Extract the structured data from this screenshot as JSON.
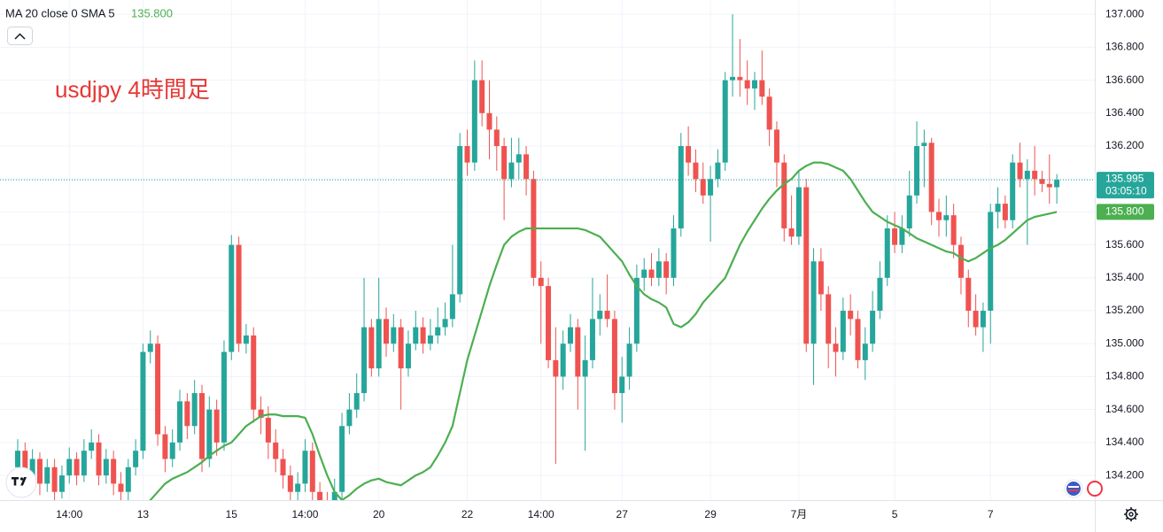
{
  "chart_data": {
    "type": "candlestick",
    "indicator_label": "MA 20 close 0 SMA 5",
    "ma_last": {
      "value": 135.8,
      "label": "135.800"
    },
    "annotation": "usdjpy 4時間足",
    "last_price": 135.995,
    "countdown": "03:05:10",
    "up_color": "#26a69a",
    "down_color": "#ef5350",
    "ma_color": "#4caf50",
    "grid": true,
    "ylim": [
      134.05,
      137.087
    ],
    "yticks": [
      {
        "value": 134.2,
        "label": "134.200"
      },
      {
        "value": 134.4,
        "label": "134.400"
      },
      {
        "value": 134.6,
        "label": "134.600"
      },
      {
        "value": 134.8,
        "label": "134.800"
      },
      {
        "value": 135,
        "label": "135.000"
      },
      {
        "value": 135.2,
        "label": "135.200"
      },
      {
        "value": 135.4,
        "label": "135.400"
      },
      {
        "value": 135.6,
        "label": "135.600"
      },
      {
        "value": 135.8,
        "label": "135.800"
      },
      {
        "value": 136,
        "label": "136.000"
      },
      {
        "value": 136.2,
        "label": "136.200"
      },
      {
        "value": 136.4,
        "label": "136.400"
      },
      {
        "value": 136.6,
        "label": "136.600"
      },
      {
        "value": 136.8,
        "label": "136.800"
      },
      {
        "value": 137,
        "label": "137.000"
      }
    ],
    "categories": [
      null,
      null,
      null,
      null,
      null,
      null,
      null,
      "14:00",
      null,
      null,
      null,
      null,
      null,
      null,
      null,
      null,
      null,
      "13",
      null,
      null,
      null,
      null,
      null,
      null,
      null,
      null,
      null,
      null,
      null,
      "15",
      null,
      null,
      null,
      null,
      null,
      null,
      null,
      null,
      null,
      "14:00",
      null,
      null,
      null,
      null,
      null,
      null,
      null,
      null,
      null,
      "20",
      null,
      null,
      null,
      null,
      null,
      null,
      null,
      null,
      null,
      null,
      null,
      "22",
      null,
      null,
      null,
      null,
      null,
      null,
      null,
      null,
      null,
      "14:00",
      null,
      null,
      null,
      null,
      null,
      null,
      null,
      null,
      null,
      null,
      "27",
      null,
      null,
      null,
      null,
      null,
      null,
      null,
      null,
      null,
      null,
      null,
      "29",
      null,
      null,
      null,
      null,
      null,
      null,
      null,
      null,
      null,
      null,
      null,
      "7月",
      null,
      null,
      null,
      null,
      null,
      null,
      null,
      null,
      null,
      null,
      null,
      null,
      "5",
      null,
      null,
      null,
      null,
      null,
      null,
      null,
      null,
      null,
      null,
      null,
      null,
      "7",
      null,
      null,
      null,
      null,
      null,
      null,
      null,
      null,
      null
    ],
    "candles": [
      [
        134.25,
        134.42,
        134.18,
        134.35
      ],
      [
        134.35,
        134.4,
        134.12,
        134.2
      ],
      [
        134.2,
        134.36,
        134.15,
        134.3
      ],
      [
        134.3,
        134.34,
        134.08,
        134.15
      ],
      [
        134.15,
        134.3,
        134.1,
        134.25
      ],
      [
        134.25,
        134.3,
        134.05,
        134.1
      ],
      [
        134.1,
        134.26,
        134.06,
        134.2
      ],
      [
        134.2,
        134.37,
        134.15,
        134.3
      ],
      [
        134.3,
        134.34,
        134.14,
        134.2
      ],
      [
        134.2,
        134.42,
        134.16,
        134.35
      ],
      [
        134.35,
        134.48,
        134.3,
        134.4
      ],
      [
        134.4,
        134.45,
        134.14,
        134.2
      ],
      [
        134.2,
        134.36,
        134.15,
        134.3
      ],
      [
        134.3,
        134.35,
        134.08,
        134.15
      ],
      [
        134.15,
        134.22,
        134.04,
        134.1
      ],
      [
        134.1,
        134.3,
        134.05,
        134.25
      ],
      [
        134.25,
        134.42,
        134.2,
        134.35
      ],
      [
        134.35,
        135.0,
        134.3,
        134.95
      ],
      [
        134.95,
        135.08,
        134.88,
        135.0
      ],
      [
        135.0,
        135.05,
        134.38,
        134.45
      ],
      [
        134.45,
        134.5,
        134.22,
        134.3
      ],
      [
        134.3,
        134.48,
        134.25,
        134.4
      ],
      [
        134.4,
        134.72,
        134.35,
        134.65
      ],
      [
        134.65,
        134.7,
        134.42,
        134.5
      ],
      [
        134.5,
        134.78,
        134.45,
        134.7
      ],
      [
        134.7,
        134.75,
        134.22,
        134.3
      ],
      [
        134.3,
        134.68,
        134.25,
        134.6
      ],
      [
        134.6,
        134.66,
        134.32,
        134.4
      ],
      [
        134.4,
        135.02,
        134.35,
        134.95
      ],
      [
        134.95,
        135.66,
        134.9,
        135.6
      ],
      [
        135.6,
        135.65,
        134.95,
        135.0
      ],
      [
        135.0,
        135.12,
        134.94,
        135.05
      ],
      [
        135.05,
        135.1,
        134.52,
        134.6
      ],
      [
        134.6,
        134.68,
        134.45,
        134.55
      ],
      [
        134.55,
        134.62,
        134.3,
        134.4
      ],
      [
        134.4,
        134.48,
        134.22,
        134.3
      ],
      [
        134.3,
        134.36,
        134.12,
        134.2
      ],
      [
        134.2,
        134.26,
        134.04,
        134.1
      ],
      [
        134.1,
        134.22,
        134.05,
        134.15
      ],
      [
        134.15,
        134.42,
        134.1,
        134.35
      ],
      [
        134.35,
        134.4,
        134.04,
        134.1
      ],
      [
        134.1,
        134.16,
        133.98,
        134.05
      ],
      [
        134.05,
        134.1,
        133.95,
        134.0
      ],
      [
        134.0,
        134.18,
        133.96,
        134.1
      ],
      [
        134.1,
        134.58,
        134.05,
        134.5
      ],
      [
        134.5,
        134.7,
        134.45,
        134.6
      ],
      [
        134.6,
        134.82,
        134.55,
        134.7
      ],
      [
        134.7,
        135.4,
        134.65,
        135.1
      ],
      [
        135.1,
        135.15,
        134.8,
        134.85
      ],
      [
        134.85,
        135.4,
        134.8,
        135.15
      ],
      [
        135.15,
        135.22,
        134.92,
        135.0
      ],
      [
        135.0,
        135.18,
        134.95,
        135.1
      ],
      [
        135.1,
        135.15,
        134.6,
        134.85
      ],
      [
        134.85,
        135.08,
        134.8,
        135.0
      ],
      [
        135.0,
        135.2,
        134.96,
        135.1
      ],
      [
        135.1,
        135.16,
        134.94,
        135.0
      ],
      [
        135.0,
        135.15,
        134.96,
        135.05
      ],
      [
        135.05,
        135.22,
        135.0,
        135.1
      ],
      [
        135.1,
        135.25,
        135.05,
        135.15
      ],
      [
        135.15,
        135.6,
        135.1,
        135.3
      ],
      [
        135.3,
        136.28,
        135.25,
        136.2
      ],
      [
        136.2,
        136.3,
        136.02,
        136.1
      ],
      [
        136.1,
        136.72,
        136.05,
        136.6
      ],
      [
        136.6,
        136.72,
        136.32,
        136.4
      ],
      [
        136.4,
        136.6,
        136.12,
        136.3
      ],
      [
        136.3,
        136.38,
        136.05,
        136.2
      ],
      [
        136.2,
        136.25,
        135.75,
        136.0
      ],
      [
        136.0,
        136.25,
        135.95,
        136.1
      ],
      [
        136.1,
        136.25,
        136.0,
        136.15
      ],
      [
        136.15,
        136.2,
        135.9,
        136.0
      ],
      [
        136.0,
        136.05,
        135.35,
        135.4
      ],
      [
        135.4,
        135.5,
        135.0,
        135.35
      ],
      [
        135.35,
        135.4,
        134.85,
        134.9
      ],
      [
        134.9,
        135.1,
        134.27,
        134.8
      ],
      [
        134.8,
        135.08,
        134.72,
        135.0
      ],
      [
        135.0,
        135.18,
        134.95,
        135.1
      ],
      [
        135.1,
        135.15,
        134.6,
        134.8
      ],
      [
        134.8,
        135.05,
        134.35,
        134.9
      ],
      [
        134.9,
        135.4,
        134.85,
        135.15
      ],
      [
        135.15,
        135.3,
        135.05,
        135.2
      ],
      [
        135.2,
        135.42,
        135.1,
        135.15
      ],
      [
        135.15,
        135.2,
        134.6,
        134.7
      ],
      [
        134.7,
        134.92,
        134.52,
        134.8
      ],
      [
        134.8,
        135.1,
        134.72,
        135.0
      ],
      [
        135.0,
        135.48,
        134.95,
        135.4
      ],
      [
        135.4,
        135.52,
        135.32,
        135.45
      ],
      [
        135.45,
        135.55,
        135.35,
        135.4
      ],
      [
        135.4,
        135.58,
        135.35,
        135.5
      ],
      [
        135.5,
        135.55,
        135.3,
        135.4
      ],
      [
        135.4,
        135.78,
        135.35,
        135.7
      ],
      [
        135.7,
        136.28,
        135.65,
        136.2
      ],
      [
        136.2,
        136.32,
        136.02,
        136.1
      ],
      [
        136.1,
        136.18,
        135.92,
        136.0
      ],
      [
        136.0,
        136.1,
        135.85,
        135.9
      ],
      [
        135.9,
        136.08,
        135.62,
        136.0
      ],
      [
        136.0,
        136.18,
        135.95,
        136.1
      ],
      [
        136.1,
        136.65,
        136.05,
        136.6
      ],
      [
        136.6,
        137.0,
        136.5,
        136.62
      ],
      [
        136.62,
        136.85,
        136.5,
        136.6
      ],
      [
        136.6,
        136.72,
        136.45,
        136.55
      ],
      [
        136.55,
        136.65,
        136.42,
        136.6
      ],
      [
        136.6,
        136.78,
        136.45,
        136.5
      ],
      [
        136.5,
        136.55,
        136.2,
        136.3
      ],
      [
        136.3,
        136.35,
        135.95,
        136.1
      ],
      [
        136.1,
        136.15,
        135.62,
        135.7
      ],
      [
        135.7,
        135.9,
        135.6,
        135.65
      ],
      [
        135.65,
        136.05,
        135.6,
        135.95
      ],
      [
        135.95,
        136.0,
        134.95,
        135.0
      ],
      [
        135.0,
        135.58,
        134.75,
        135.5
      ],
      [
        135.5,
        135.58,
        135.2,
        135.3
      ],
      [
        135.3,
        135.35,
        134.85,
        135.0
      ],
      [
        135.0,
        135.1,
        134.8,
        134.95
      ],
      [
        134.95,
        135.28,
        134.9,
        135.2
      ],
      [
        135.2,
        135.3,
        135.05,
        135.15
      ],
      [
        135.15,
        135.2,
        134.85,
        134.9
      ],
      [
        134.9,
        135.1,
        134.78,
        135.0
      ],
      [
        135.0,
        135.32,
        134.95,
        135.2
      ],
      [
        135.2,
        135.5,
        135.15,
        135.4
      ],
      [
        135.4,
        135.78,
        135.35,
        135.7
      ],
      [
        135.7,
        135.8,
        135.55,
        135.6
      ],
      [
        135.6,
        135.78,
        135.55,
        135.7
      ],
      [
        135.7,
        136.05,
        135.65,
        135.9
      ],
      [
        135.9,
        136.35,
        135.85,
        136.2
      ],
      [
        136.2,
        136.3,
        135.95,
        136.22
      ],
      [
        136.22,
        136.25,
        135.72,
        135.8
      ],
      [
        135.8,
        135.88,
        135.65,
        135.75
      ],
      [
        135.75,
        135.9,
        135.65,
        135.78
      ],
      [
        135.78,
        135.85,
        135.52,
        135.6
      ],
      [
        135.6,
        135.65,
        135.3,
        135.4
      ],
      [
        135.4,
        135.45,
        135.1,
        135.2
      ],
      [
        135.2,
        135.3,
        135.05,
        135.1
      ],
      [
        135.1,
        135.25,
        134.95,
        135.2
      ],
      [
        135.2,
        135.85,
        135.0,
        135.8
      ],
      [
        135.8,
        135.95,
        135.7,
        135.85
      ],
      [
        135.85,
        135.9,
        135.7,
        135.75
      ],
      [
        135.75,
        136.15,
        135.7,
        136.1
      ],
      [
        136.1,
        136.22,
        135.95,
        136.0
      ],
      [
        136.0,
        136.12,
        135.6,
        136.05
      ],
      [
        136.05,
        136.2,
        135.9,
        136.0
      ],
      [
        136.0,
        136.05,
        135.92,
        135.97
      ],
      [
        135.97,
        136.15,
        135.85,
        135.95
      ],
      [
        135.95,
        136.03,
        135.85,
        135.995
      ]
    ],
    "ma": [
      null,
      null,
      null,
      null,
      null,
      null,
      null,
      null,
      null,
      null,
      null,
      null,
      null,
      null,
      null,
      null,
      null,
      134.0,
      134.05,
      134.1,
      134.15,
      134.18,
      134.2,
      134.22,
      134.25,
      134.28,
      134.32,
      134.35,
      134.38,
      134.4,
      134.45,
      134.5,
      134.53,
      134.56,
      134.57,
      134.57,
      134.56,
      134.56,
      134.56,
      134.55,
      134.45,
      134.32,
      134.2,
      134.1,
      134.05,
      134.08,
      134.12,
      134.15,
      134.17,
      134.18,
      134.16,
      134.15,
      134.14,
      134.17,
      134.2,
      134.22,
      134.25,
      134.32,
      134.4,
      134.5,
      134.7,
      134.9,
      135.05,
      135.2,
      135.35,
      135.48,
      135.6,
      135.65,
      135.68,
      135.7,
      135.7,
      135.7,
      135.7,
      135.7,
      135.7,
      135.7,
      135.7,
      135.69,
      135.67,
      135.65,
      135.6,
      135.55,
      135.5,
      135.42,
      135.35,
      135.3,
      135.27,
      135.25,
      135.22,
      135.12,
      135.1,
      135.13,
      135.18,
      135.25,
      135.3,
      135.35,
      135.4,
      135.5,
      135.6,
      135.68,
      135.75,
      135.82,
      135.88,
      135.93,
      135.97,
      136.0,
      136.05,
      136.08,
      136.1,
      136.1,
      136.09,
      136.07,
      136.05,
      136.0,
      135.93,
      135.86,
      135.8,
      135.77,
      135.74,
      135.72,
      135.7,
      135.67,
      135.64,
      135.62,
      135.6,
      135.58,
      135.56,
      135.55,
      135.52,
      135.5,
      135.52,
      135.55,
      135.58,
      135.6,
      135.63,
      135.67,
      135.71,
      135.75,
      135.77,
      135.78,
      135.79,
      135.8
    ]
  }
}
